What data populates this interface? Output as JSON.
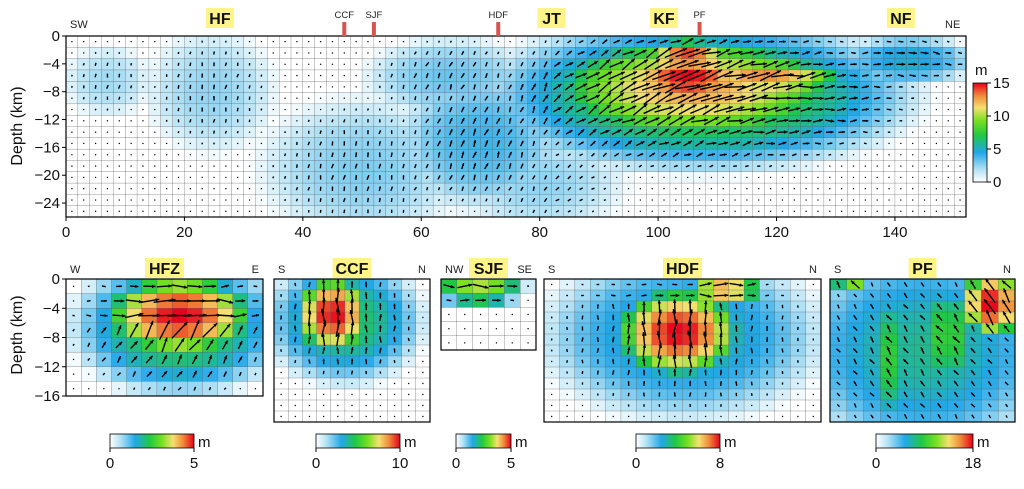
{
  "chart_data": [
    {
      "type": "heatmap",
      "panel": "main",
      "ylabel": "Depth (km)",
      "x_ticks": [
        "0",
        "20",
        "40",
        "60",
        "80",
        "100",
        "120",
        "140"
      ],
      "xlim": [
        0,
        152
      ],
      "y_ticks": [
        "0",
        "−4",
        "−8",
        "−12",
        "−16",
        "−20",
        "−24"
      ],
      "ylim": [
        -26,
        0
      ],
      "end_labels": [
        "SW",
        "NE"
      ],
      "fault_labels": [
        {
          "text": "HF",
          "x": 26
        },
        {
          "text": "JT",
          "x": 82
        },
        {
          "text": "KF",
          "x": 101
        },
        {
          "text": "NF",
          "x": 141
        }
      ],
      "surface_traces": [
        {
          "text": "CCF",
          "x": 47
        },
        {
          "text": "SJF",
          "x": 52
        },
        {
          "text": "HDF",
          "x": 73
        },
        {
          "text": "PF",
          "x": 107
        }
      ],
      "colorbar": {
        "unit": "m",
        "min": 0,
        "max": 15,
        "ticks": [
          "0",
          "5",
          "10",
          "15"
        ]
      },
      "slip_patches": [
        {
          "x": [
            17,
            32
          ],
          "y": [
            -14,
            -2
          ],
          "peak": 2.5
        },
        {
          "x": [
            2,
            12
          ],
          "y": [
            -10,
            -3
          ],
          "peak": 2.2
        },
        {
          "x": [
            38,
            62
          ],
          "y": [
            -26,
            -12
          ],
          "peak": 2.8
        },
        {
          "x": [
            60,
            80
          ],
          "y": [
            -22,
            -8
          ],
          "peak": 4.0
        },
        {
          "x": [
            55,
            75
          ],
          "y": [
            -10,
            -2
          ],
          "peak": 3.2
        },
        {
          "x": [
            70,
            90
          ],
          "y": [
            -26,
            -16
          ],
          "peak": 2.5
        },
        {
          "x": [
            82,
            132
          ],
          "y": [
            -16,
            -1
          ],
          "peak": 8.0
        },
        {
          "x": [
            88,
            124
          ],
          "y": [
            -13,
            -2
          ],
          "peak": 12.5
        },
        {
          "x": [
            97,
            113
          ],
          "y": [
            -9,
            -3
          ],
          "peak": 15.0
        },
        {
          "x": [
            108,
            128
          ],
          "y": [
            -8,
            -4
          ],
          "peak": 13.0
        },
        {
          "x": [
            100,
            110
          ],
          "y": [
            -3,
            -1
          ],
          "peak": 15.0
        },
        {
          "x": [
            134,
            150
          ],
          "y": [
            -6,
            -1
          ],
          "peak": 5.0
        }
      ]
    },
    {
      "type": "heatmap",
      "panel": "HFZ",
      "title": "HFZ",
      "ylabel": "Depth (km)",
      "end_labels": [
        "W",
        "E"
      ],
      "y_ticks": [
        "0",
        "−4",
        "−8",
        "−12",
        "−16"
      ],
      "ylim": [
        -16,
        0
      ],
      "colorbar": {
        "unit": "m",
        "min": 0,
        "max": 5,
        "ticks": [
          "0",
          "5"
        ]
      },
      "slip_patches": [
        {
          "x": [
            0.3,
            0.85
          ],
          "y": [
            -9,
            -1
          ],
          "peak": 5.0
        },
        {
          "x": [
            0.2,
            0.95
          ],
          "y": [
            -13,
            0
          ],
          "peak": 2.5
        }
      ]
    },
    {
      "type": "heatmap",
      "panel": "CCF",
      "title": "CCF",
      "end_labels": [
        "S",
        "N"
      ],
      "ylim": [
        -20,
        0
      ],
      "colorbar": {
        "unit": "m",
        "min": 0,
        "max": 10,
        "ticks": [
          "0",
          "10"
        ]
      },
      "slip_patches": [
        {
          "x": [
            0.2,
            0.55
          ],
          "y": [
            -9,
            -1
          ],
          "peak": 10.0
        },
        {
          "x": [
            0.1,
            0.8
          ],
          "y": [
            -12,
            0
          ],
          "peak": 4.5
        }
      ]
    },
    {
      "type": "heatmap",
      "panel": "SJF",
      "title": "SJF",
      "end_labels": [
        "NW",
        "SE"
      ],
      "ylim": [
        -10,
        0
      ],
      "colorbar": {
        "unit": "m",
        "min": 0,
        "max": 5,
        "ticks": [
          "0",
          "5"
        ]
      },
      "slip_patches": [
        {
          "x": [
            0.05,
            0.75
          ],
          "y": [
            -3,
            0
          ],
          "peak": 3.5
        }
      ]
    },
    {
      "type": "heatmap",
      "panel": "HDF",
      "title": "HDF",
      "end_labels": [
        "S",
        "N"
      ],
      "ylim": [
        -20,
        0
      ],
      "colorbar": {
        "unit": "m",
        "min": 0,
        "max": 8,
        "ticks": [
          "0",
          "8"
        ]
      },
      "slip_patches": [
        {
          "x": [
            0.32,
            0.65
          ],
          "y": [
            -12,
            -3
          ],
          "peak": 8.0
        },
        {
          "x": [
            0.55,
            0.75
          ],
          "y": [
            -3,
            0
          ],
          "peak": 7.0
        },
        {
          "x": [
            0.15,
            0.85
          ],
          "y": [
            -16,
            0
          ],
          "peak": 3.0
        }
      ]
    },
    {
      "type": "heatmap",
      "panel": "PF",
      "title": "PF",
      "end_labels": [
        "S",
        "N"
      ],
      "ylim": [
        -20,
        0
      ],
      "colorbar": {
        "unit": "m",
        "min": 0,
        "max": 18,
        "ticks": [
          "0",
          "18"
        ]
      },
      "slip_patches": [
        {
          "x": [
            0.0,
            1.0
          ],
          "y": [
            -20,
            0
          ],
          "peak": 7.0
        },
        {
          "x": [
            0.75,
            1.0
          ],
          "y": [
            -7,
            0
          ],
          "peak": 18.0
        },
        {
          "x": [
            0.55,
            0.72
          ],
          "y": [
            -14,
            -2
          ],
          "peak": 10.0
        },
        {
          "x": [
            0.25,
            0.4
          ],
          "y": [
            -18,
            -4
          ],
          "peak": 9.0
        },
        {
          "x": [
            0.05,
            0.15
          ],
          "y": [
            -2,
            0
          ],
          "peak": 14.0
        }
      ]
    }
  ]
}
